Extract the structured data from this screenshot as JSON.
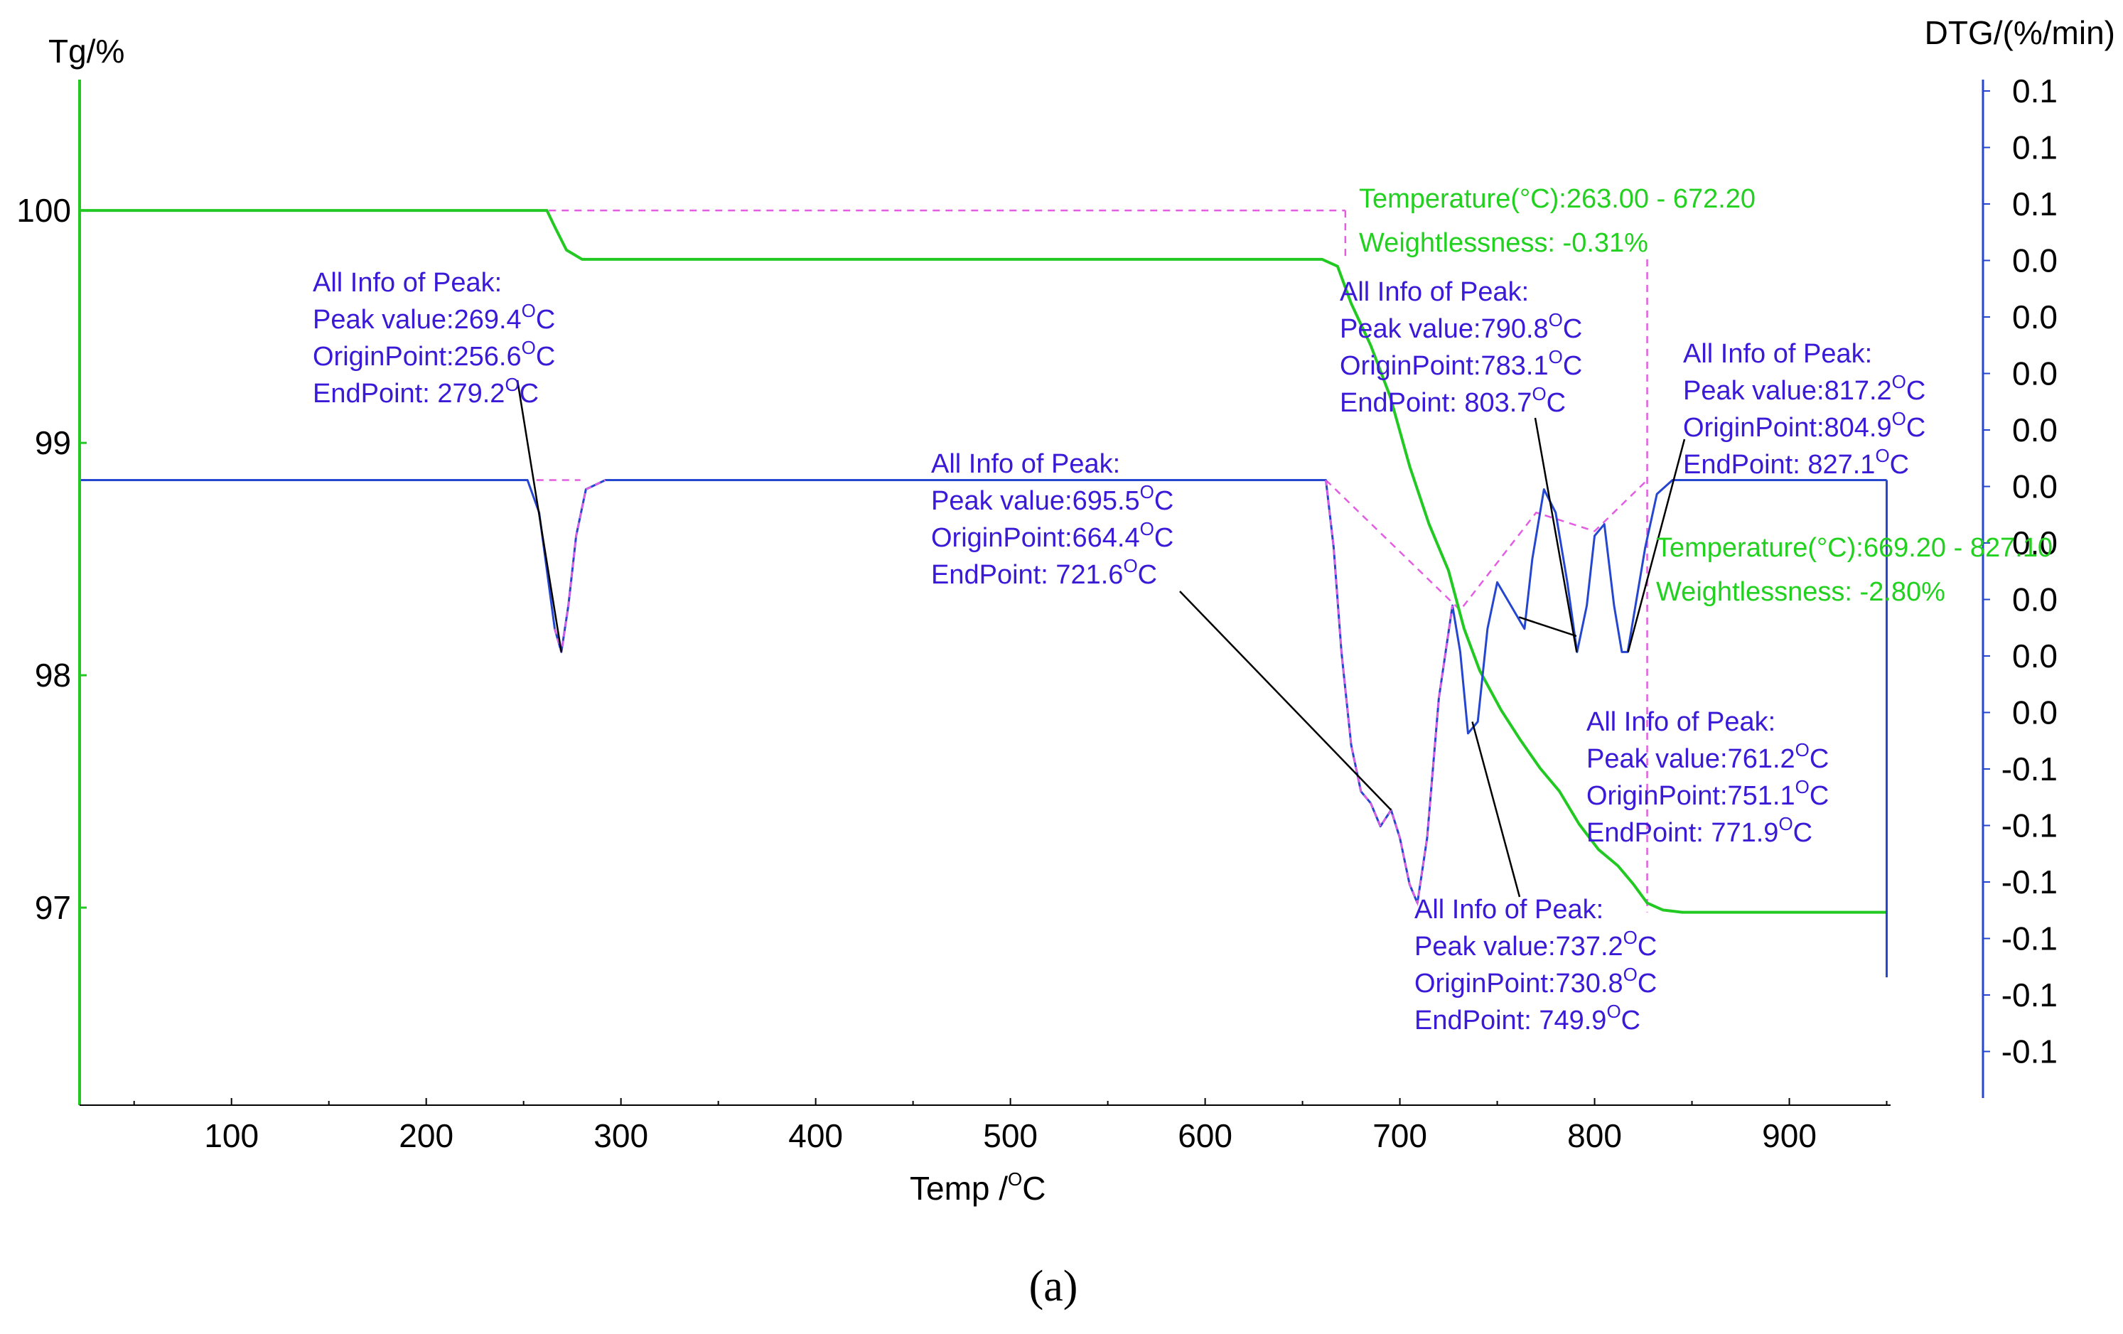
{
  "chart_data": {
    "type": "line",
    "caption": "(a)",
    "xlabel": "Temp /°C",
    "xlabel_main": "Temp /",
    "xlabel_sup": "O",
    "xlabel_unit": "C",
    "ylabel_left": "Tg/%",
    "ylabel_right": "DTG/(%/min)",
    "xlim": [
      22,
      952
    ],
    "ylim_left": [
      96.15,
      100.6
    ],
    "x_ticks": [
      "100",
      "200",
      "300",
      "400",
      "500",
      "600",
      "700",
      "800",
      "900"
    ],
    "y_left_ticks": [
      "100",
      "99",
      "98",
      "97"
    ],
    "y_right_ticks": [
      "0.1",
      "0.1",
      "0.1",
      "0.0",
      "0.0",
      "0.0",
      "0.0",
      "0.0",
      "0.0",
      "0.0",
      "0.0",
      "0.0",
      "-0.1",
      "-0.1",
      "-0.1",
      "-0.1",
      "-0.1",
      "-0.1"
    ],
    "colors": {
      "tg": "#22c922",
      "dtg": "#2546cf",
      "guide": "#e35de3",
      "leader": "#000000",
      "annotation": "#3a1ad6",
      "info": "#22d11f",
      "axis": "#22c922",
      "right_axis": "#2546cf"
    },
    "series": [
      {
        "name": "TG",
        "axis": "left",
        "x": [
          22,
          262,
          266,
          272,
          280,
          290,
          660,
          668,
          675,
          685,
          695,
          705,
          715,
          725,
          733,
          741,
          752,
          762,
          772,
          782,
          792,
          802,
          812,
          820,
          827,
          835,
          845,
          950
        ],
        "y": [
          100.0,
          100.0,
          99.93,
          99.83,
          99.79,
          99.79,
          99.79,
          99.76,
          99.6,
          99.42,
          99.2,
          98.9,
          98.65,
          98.45,
          98.2,
          98.02,
          97.85,
          97.72,
          97.6,
          97.5,
          97.36,
          97.25,
          97.18,
          97.1,
          97.02,
          96.99,
          96.98,
          96.98
        ]
      },
      {
        "name": "DTG",
        "axis": "left",
        "x": [
          22,
          252,
          258,
          262,
          266,
          269.4,
          273,
          277,
          282,
          292,
          662,
          666,
          670,
          675,
          680,
          685,
          690,
          695.5,
          700,
          705,
          709,
          714,
          720,
          727,
          731,
          735,
          740,
          745,
          750,
          757,
          764,
          768,
          774,
          780,
          786,
          791,
          796,
          800,
          805,
          810,
          814,
          817,
          821,
          826,
          832,
          840,
          855,
          950
        ],
        "y": [
          98.84,
          98.84,
          98.7,
          98.45,
          98.2,
          98.1,
          98.3,
          98.6,
          98.8,
          98.84,
          98.84,
          98.55,
          98.1,
          97.7,
          97.5,
          97.45,
          97.35,
          97.42,
          97.3,
          97.1,
          97.02,
          97.3,
          97.9,
          98.3,
          98.1,
          97.75,
          97.8,
          98.2,
          98.4,
          98.3,
          98.2,
          98.5,
          98.8,
          98.7,
          98.4,
          98.1,
          98.3,
          98.6,
          98.65,
          98.3,
          98.1,
          98.1,
          98.3,
          98.55,
          98.78,
          98.84,
          98.84,
          98.84
        ]
      },
      {
        "name": "DTG-end",
        "axis": "left",
        "x": [
          950,
          950
        ],
        "y": [
          96.7,
          98.84
        ]
      }
    ],
    "peaks": [
      {
        "title": "All Info of Peak:",
        "peak_label": "Peak value:",
        "peak_value": "269.4",
        "origin_label": "OriginPoint:",
        "origin_value": "256.6",
        "end_label": "EndPoint: ",
        "end_value": "279.2",
        "deg": "O",
        "unit": "C",
        "peak_x": 269.4,
        "peak_y": 98.1
      },
      {
        "title": "All Info of Peak:",
        "peak_label": "Peak value:",
        "peak_value": "695.5",
        "origin_label": "OriginPoint:",
        "origin_value": "664.4",
        "end_label": "EndPoint: ",
        "end_value": "721.6",
        "deg": "O",
        "unit": "C",
        "peak_x": 695.5,
        "peak_y": 97.42
      },
      {
        "title": "All Info of Peak:",
        "peak_label": "Peak value:",
        "peak_value": "790.8",
        "origin_label": "OriginPoint:",
        "origin_value": "783.1",
        "end_label": "EndPoint: ",
        "end_value": "803.7",
        "deg": "O",
        "unit": "C",
        "peak_x": 790.8,
        "peak_y": 98.1
      },
      {
        "title": "All Info of Peak:",
        "peak_label": "Peak value:",
        "peak_value": "817.2",
        "origin_label": "OriginPoint:",
        "origin_value": "804.9",
        "end_label": "EndPoint: ",
        "end_value": "827.1",
        "deg": "O",
        "unit": "C",
        "peak_x": 817.2,
        "peak_y": 98.1
      },
      {
        "title": "All Info of Peak:",
        "peak_label": "Peak value:",
        "peak_value": "761.2",
        "origin_label": "OriginPoint:",
        "origin_value": "751.1",
        "end_label": "EndPoint: ",
        "end_value": "771.9",
        "deg": "O",
        "unit": "C",
        "peak_x": 761.2,
        "peak_y": 98.25
      },
      {
        "title": "All Info of Peak:",
        "peak_label": "Peak value:",
        "peak_value": "737.2",
        "origin_label": "OriginPoint:",
        "origin_value": "730.8",
        "end_label": "EndPoint: ",
        "end_value": "749.9",
        "deg": "O",
        "unit": "C",
        "peak_x": 737.2,
        "peak_y": 97.8
      }
    ],
    "step_info": [
      {
        "temperature_label": "Temperature(°C):",
        "temperature_range": "263.00 - 672.20",
        "weight_label": "Weightlessness: ",
        "weight_value": "-0.31%"
      },
      {
        "temperature_label": "Temperature(°C):",
        "temperature_range": "669.20 - 827.10",
        "weight_label": "Weightlessness: ",
        "weight_value": "-2.80%"
      }
    ]
  }
}
